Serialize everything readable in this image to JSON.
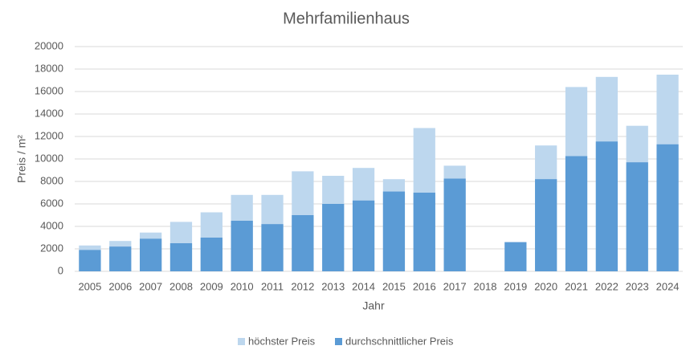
{
  "chart_data": {
    "type": "bar",
    "overlap": true,
    "title": "Mehrfamilienhaus",
    "x_label": "Jahr",
    "y_label": "Preis / m²",
    "categories": [
      "2005",
      "2006",
      "2007",
      "2008",
      "2009",
      "2010",
      "2011",
      "2012",
      "2013",
      "2014",
      "2015",
      "2016",
      "2017",
      "2018",
      "2019",
      "2020",
      "2021",
      "2022",
      "2023",
      "2024"
    ],
    "series": [
      {
        "name": "höchster Preis",
        "color": "#bdd7ee",
        "values": [
          2300,
          2700,
          3450,
          4400,
          5250,
          6800,
          6800,
          8900,
          8500,
          9200,
          8200,
          12750,
          9400,
          null,
          null,
          11200,
          16400,
          17300,
          12950,
          17500
        ]
      },
      {
        "name": "durchschnittlicher Preis",
        "color": "#5b9bd5",
        "values": [
          1900,
          2200,
          2900,
          2500,
          3000,
          4500,
          4200,
          5000,
          6000,
          6300,
          7100,
          7000,
          8250,
          null,
          2600,
          8200,
          10250,
          11550,
          9700,
          11300
        ]
      }
    ],
    "ylim": [
      0,
      20000
    ],
    "yticks": [
      0,
      2000,
      4000,
      6000,
      8000,
      10000,
      12000,
      14000,
      16000,
      18000,
      20000
    ],
    "grid": true,
    "legend": "bottom"
  }
}
